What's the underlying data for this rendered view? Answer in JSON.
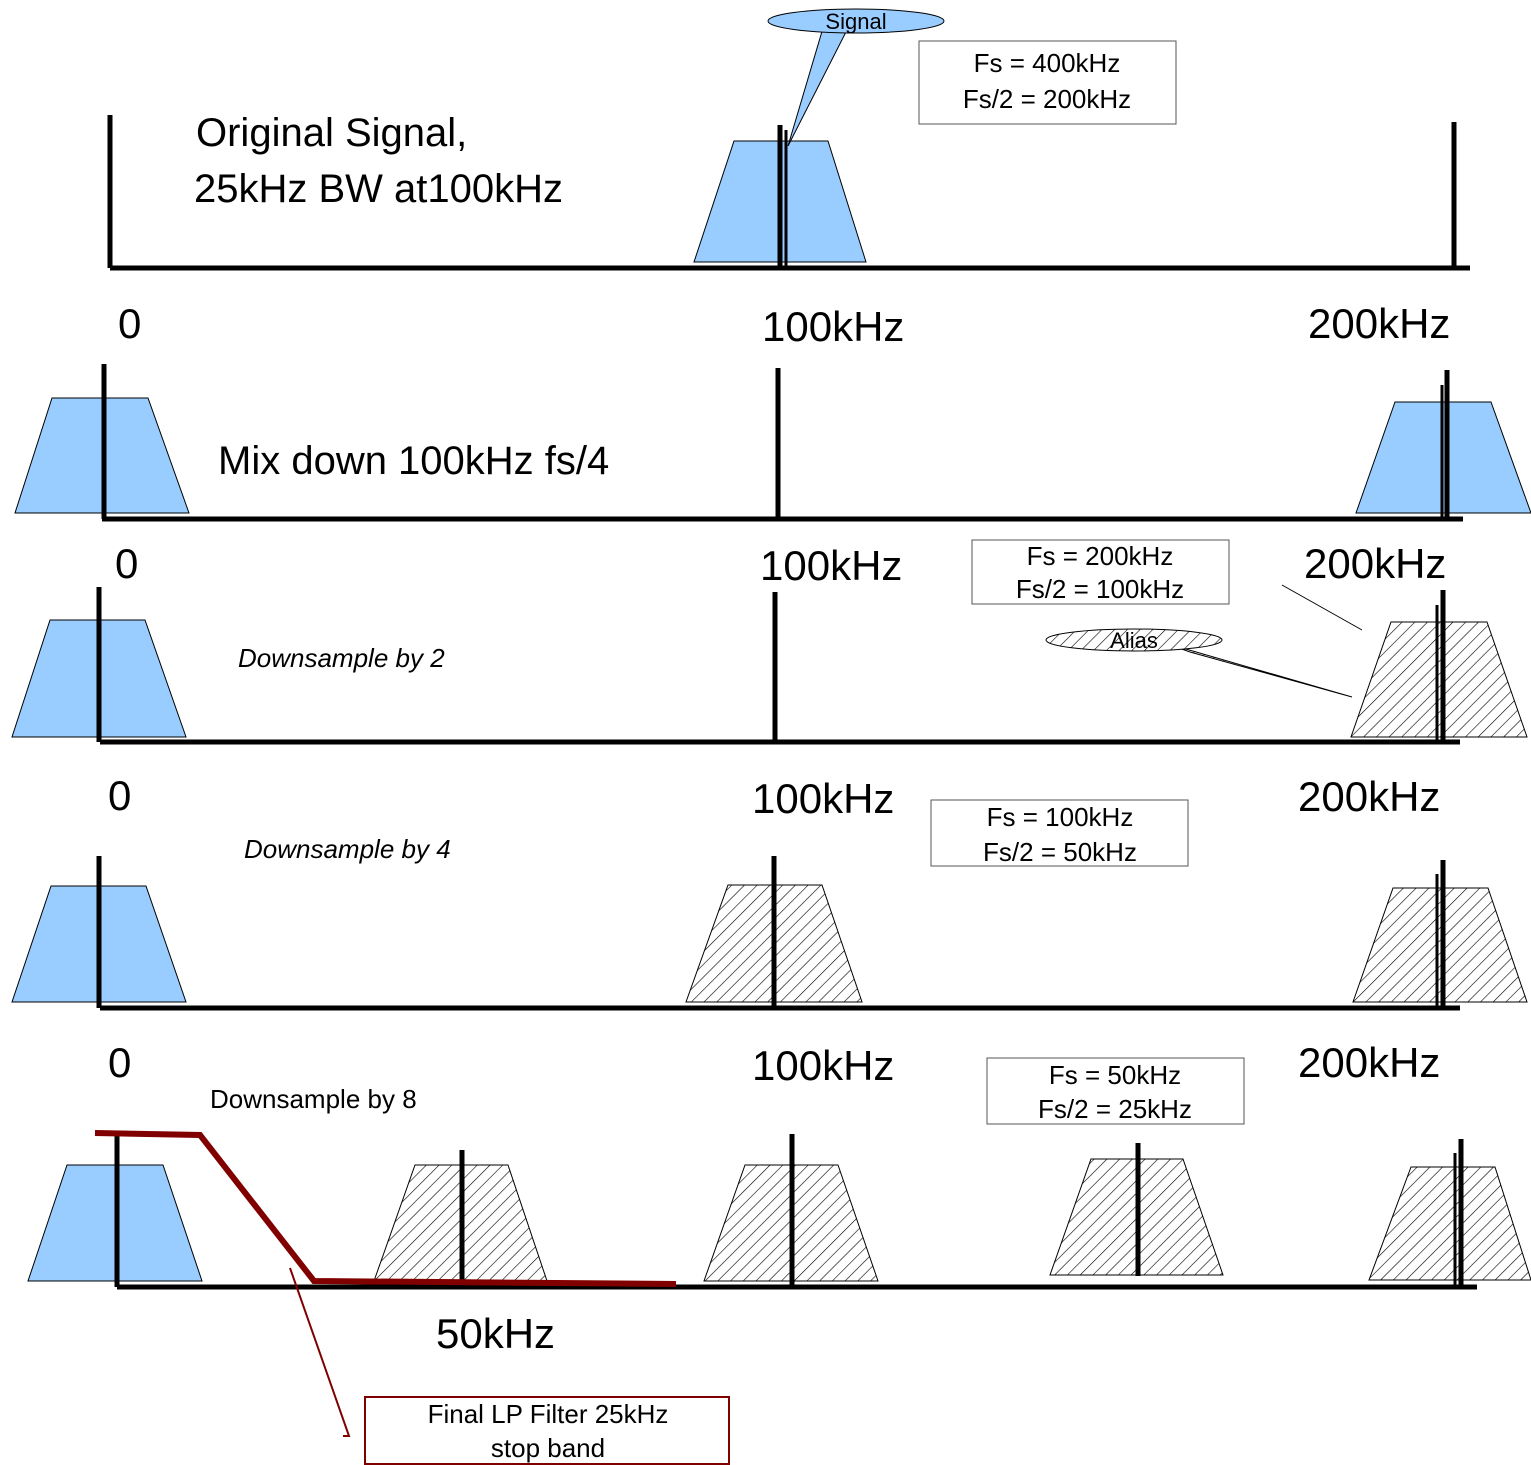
{
  "colors": {
    "signal_fill": "#99ccff",
    "line": "#000000",
    "filter_line": "#800000",
    "box_border": "#555555"
  },
  "row1": {
    "title_line1": "Original Signal,",
    "title_line2": "25kHz BW at100kHz",
    "callout": "Signal",
    "box_line1": "Fs = 400kHz",
    "box_line2": "Fs/2 = 200kHz",
    "tick_0": "0",
    "tick_100": "100kHz",
    "tick_200": "200kHz"
  },
  "row2": {
    "title": "Mix down 100kHz fs/4",
    "tick_0": "0",
    "tick_100": "100kHz",
    "tick_200": "200kHz"
  },
  "row3": {
    "title": "Downsample by 2",
    "box_line1": "Fs = 200kHz",
    "box_line2": "Fs/2 = 100kHz",
    "callout": "Alias",
    "tick_0": "0",
    "tick_100": "100kHz",
    "tick_200": "200kHz"
  },
  "row4": {
    "title": "Downsample by 4",
    "box_line1": "Fs = 100kHz",
    "box_line2": "Fs/2 = 50kHz",
    "tick_0": "0",
    "tick_100": "100kHz",
    "tick_200": "200kHz"
  },
  "row5": {
    "title": "Downsample by 8",
    "box_line1": "Fs = 50kHz",
    "box_line2": "Fs/2 = 25kHz",
    "tick_50": "50kHz",
    "filter_line1": "Final LP Filter 25kHz",
    "filter_line2": "stop band"
  }
}
